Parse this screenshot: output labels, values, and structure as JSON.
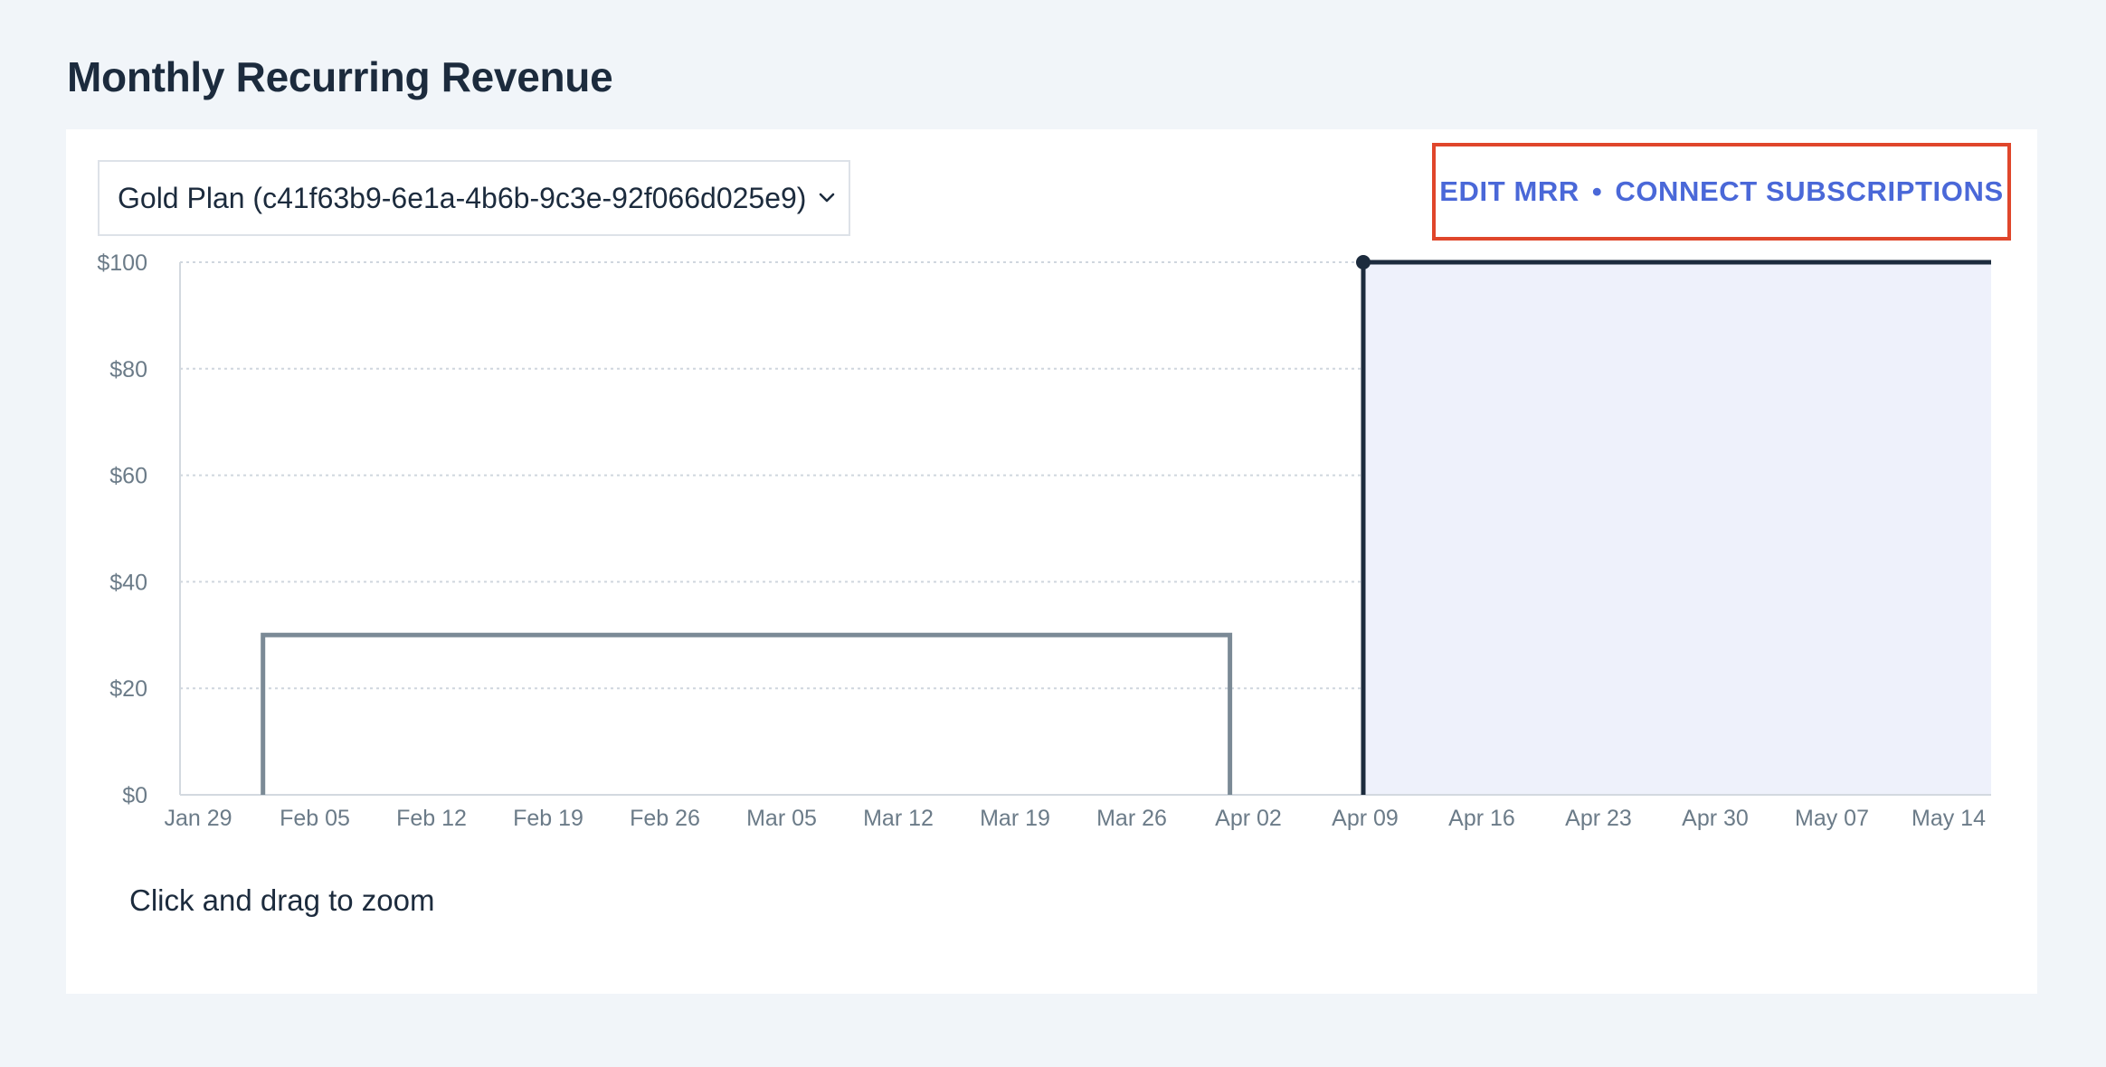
{
  "page": {
    "title": "Monthly Recurring Revenue"
  },
  "controls": {
    "plan_select": {
      "value": "Gold Plan (c41f63b9-6e1a-4b6b-9c3e-92f066d025e9)"
    },
    "edit_mrr_label": "EDIT MRR",
    "separator": "•",
    "connect_label": "CONNECT SUBSCRIPTIONS"
  },
  "hint": "Click and drag to zoom",
  "colors": {
    "past_series": "#7b8a96",
    "current_series": "#1c2b3d",
    "highlight_fill": "#eef1fb",
    "accent": "#4a68d8",
    "highlight_border": "#e0462b"
  },
  "chart_data": {
    "type": "line",
    "x_axis": {
      "type": "date",
      "start": "2018-01-29",
      "end": "2018-05-17",
      "ticks": [
        "Jan 29",
        "Feb 05",
        "Feb 12",
        "Feb 19",
        "Feb 26",
        "Mar 05",
        "Mar 12",
        "Mar 19",
        "Mar 26",
        "Apr 02",
        "Apr 09",
        "Apr 16",
        "Apr 23",
        "Apr 30",
        "May 07",
        "May 14"
      ]
    },
    "y_axis": {
      "ylim": [
        0,
        100
      ],
      "ticks": [
        0,
        20,
        40,
        60,
        80,
        100
      ],
      "tick_labels": [
        "$0",
        "$20",
        "$40",
        "$60",
        "$80",
        "$100"
      ]
    },
    "grid": true,
    "series": [
      {
        "style": "past",
        "points": [
          {
            "x": "2018-02-02",
            "y": 0
          },
          {
            "x": "2018-02-02",
            "y": 30
          },
          {
            "x": "2018-04-01",
            "y": 30
          },
          {
            "x": "2018-04-01",
            "y": 0
          }
        ]
      },
      {
        "style": "current",
        "points": [
          {
            "x": "2018-04-09",
            "y": 0
          },
          {
            "x": "2018-04-09",
            "y": 100
          },
          {
            "x": "2018-05-17",
            "y": 100
          }
        ],
        "marker_at": {
          "x": "2018-04-09",
          "y": 100
        }
      }
    ],
    "highlight_region": {
      "start": "2018-04-09",
      "end": "2018-05-17"
    }
  }
}
